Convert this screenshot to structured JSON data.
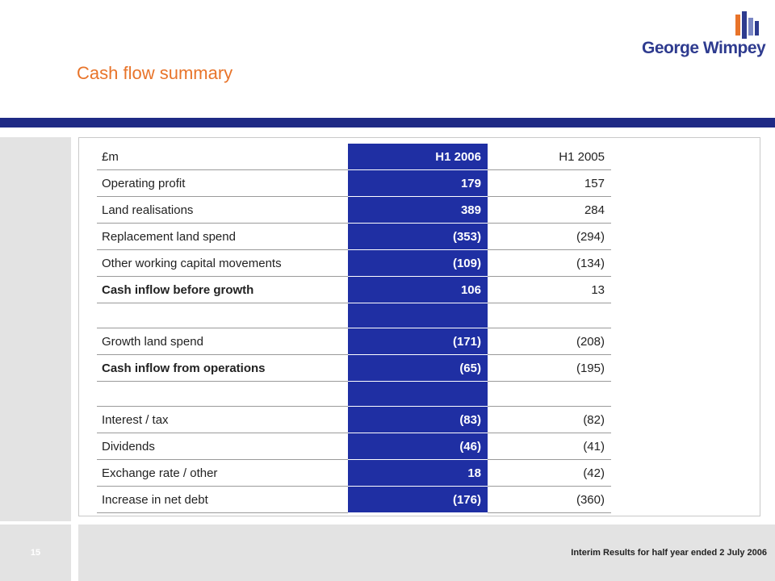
{
  "slide": {
    "title": "Cash flow summary",
    "brand": "George Wimpey",
    "page_number": "15",
    "footer": "Interim Results for half year ended 2 July 2006"
  },
  "colors": {
    "title_orange": "#e8742a",
    "brand_navy": "#1f2a85",
    "highlight_blue": "#1f2fa3",
    "footer_grey": "#e3e3e3"
  },
  "table": {
    "headers": {
      "label": "£m",
      "current": "H1 2006",
      "prior": "H1 2005"
    },
    "rows": [
      {
        "label": "Operating profit",
        "current": "179",
        "prior": "157"
      },
      {
        "label": "Land realisations",
        "current": "389",
        "prior": "284"
      },
      {
        "label": "Replacement land spend",
        "current": "(353)",
        "prior": "(294)"
      },
      {
        "label": "Other working capital movements",
        "current": "(109)",
        "prior": "(134)"
      },
      {
        "label": "Cash inflow before growth",
        "current": "106",
        "prior": "13"
      },
      {
        "label": "Growth land spend",
        "current": "(171)",
        "prior": "(208)"
      },
      {
        "label": "Cash inflow from operations",
        "current": "(65)",
        "prior": "(195)"
      },
      {
        "label": "Interest / tax",
        "current": "(83)",
        "prior": "(82)"
      },
      {
        "label": "Dividends",
        "current": "(46)",
        "prior": "(41)"
      },
      {
        "label": "Exchange rate / other",
        "current": "18",
        "prior": "(42)"
      },
      {
        "label": "Increase in net debt",
        "current": "(176)",
        "prior": "(360)"
      }
    ]
  }
}
